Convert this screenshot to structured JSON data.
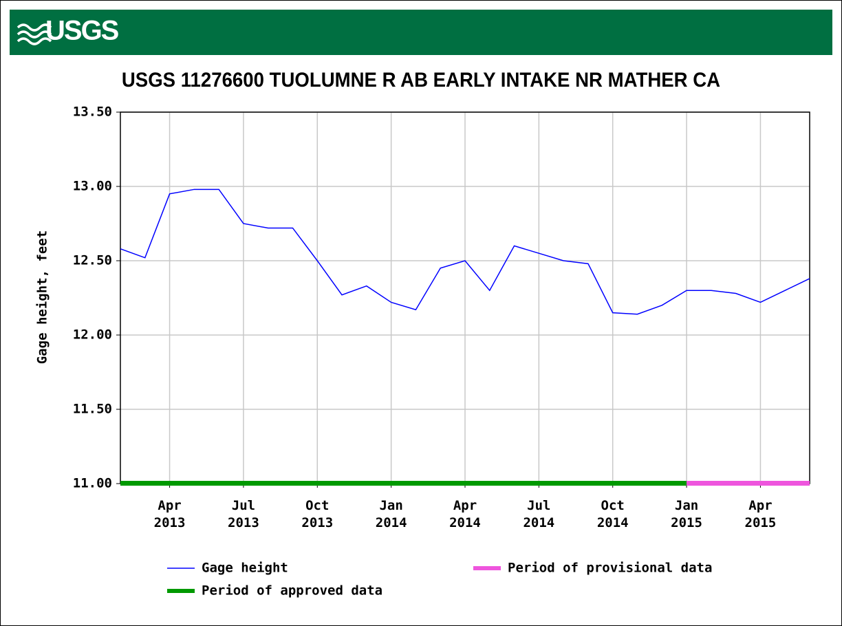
{
  "logo": "USGS",
  "chart_data": {
    "type": "line",
    "title": "USGS 11276600 TUOLUMNE R AB EARLY INTAKE NR MATHER CA",
    "y_label": "Gage height, feet",
    "x": [
      "2013-02",
      "2013-03",
      "2013-04",
      "2013-05",
      "2013-06",
      "2013-07",
      "2013-08",
      "2013-09",
      "2013-10",
      "2013-11",
      "2013-12",
      "2014-01",
      "2014-02",
      "2014-03",
      "2014-04",
      "2014-05",
      "2014-06",
      "2014-07",
      "2014-08",
      "2014-09",
      "2014-10",
      "2014-11",
      "2014-12",
      "2015-01",
      "2015-02",
      "2015-03",
      "2015-04",
      "2015-05",
      "2015-06"
    ],
    "series": [
      {
        "name": "Gage height",
        "color": "#0000ff",
        "values": [
          12.58,
          12.52,
          12.95,
          12.98,
          12.98,
          12.75,
          12.72,
          12.72,
          12.5,
          12.27,
          12.33,
          12.22,
          12.17,
          12.45,
          12.5,
          12.3,
          12.6,
          12.55,
          12.5,
          12.48,
          12.15,
          12.14,
          12.2,
          12.3,
          12.3,
          12.28,
          12.22,
          12.3,
          12.38
        ]
      }
    ],
    "periods": [
      {
        "name": "Period of approved data",
        "color": "#009900",
        "start": "2013-02",
        "end": "2015-01"
      },
      {
        "name": "Period of provisional data",
        "color": "#ee55dd",
        "start": "2015-01",
        "end": "2015-06"
      }
    ],
    "xlim": [
      "2013-02",
      "2015-06"
    ],
    "xticks": [
      {
        "value": "2013-04",
        "label": "Apr 2013"
      },
      {
        "value": "2013-07",
        "label": "Jul 2013"
      },
      {
        "value": "2013-10",
        "label": "Oct 2013"
      },
      {
        "value": "2014-01",
        "label": "Jan 2014"
      },
      {
        "value": "2014-04",
        "label": "Apr 2014"
      },
      {
        "value": "2014-07",
        "label": "Jul 2014"
      },
      {
        "value": "2014-10",
        "label": "Oct 2014"
      },
      {
        "value": "2015-01",
        "label": "Jan 2015"
      },
      {
        "value": "2015-04",
        "label": "Apr 2015"
      }
    ],
    "ylim": [
      11,
      13.5
    ],
    "yticks": [
      {
        "value": 11,
        "label": "11.00"
      },
      {
        "value": 11.5,
        "label": "11.50"
      },
      {
        "value": 12,
        "label": "12.00"
      },
      {
        "value": 12.5,
        "label": "12.50"
      },
      {
        "value": 13,
        "label": "13.00"
      },
      {
        "value": 13.5,
        "label": "13.50"
      }
    ],
    "grid": true
  }
}
